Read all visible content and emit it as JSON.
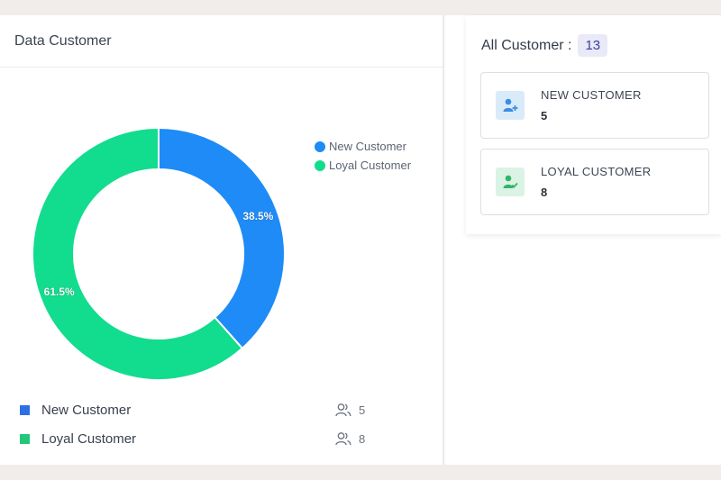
{
  "left_panel": {
    "title": "Data Customer",
    "legend": [
      {
        "label": "New Customer",
        "color": "#1e8bf7"
      },
      {
        "label": "Loyal Customer",
        "color": "#12dc8d"
      }
    ],
    "list": [
      {
        "label": "New Customer",
        "count": "5",
        "color": "#2f6fe5",
        "icon": "users-icon"
      },
      {
        "label": "Loyal Customer",
        "count": "8",
        "color": "#22c77a",
        "icon": "users-icon"
      }
    ]
  },
  "chart_data": {
    "type": "pie",
    "categories": [
      "New Customer",
      "Loyal Customer"
    ],
    "values": [
      5,
      8
    ],
    "data_labels": [
      "38.5%",
      "61.5%"
    ],
    "colors": [
      "#1e8bf7",
      "#12dc8d"
    ],
    "legend_position": "top-right"
  },
  "right_panel": {
    "title": "All Customer :",
    "total": "13",
    "cards": [
      {
        "label": "NEW CUSTOMER",
        "value": "5",
        "icon": "user-plus-icon",
        "icon_color": "#3b8ee0",
        "icon_bg": "#d9ebf9"
      },
      {
        "label": "LOYAL CUSTOMER",
        "value": "8",
        "icon": "user-check-icon",
        "icon_color": "#33b46a",
        "icon_bg": "#daf3e4"
      }
    ]
  }
}
